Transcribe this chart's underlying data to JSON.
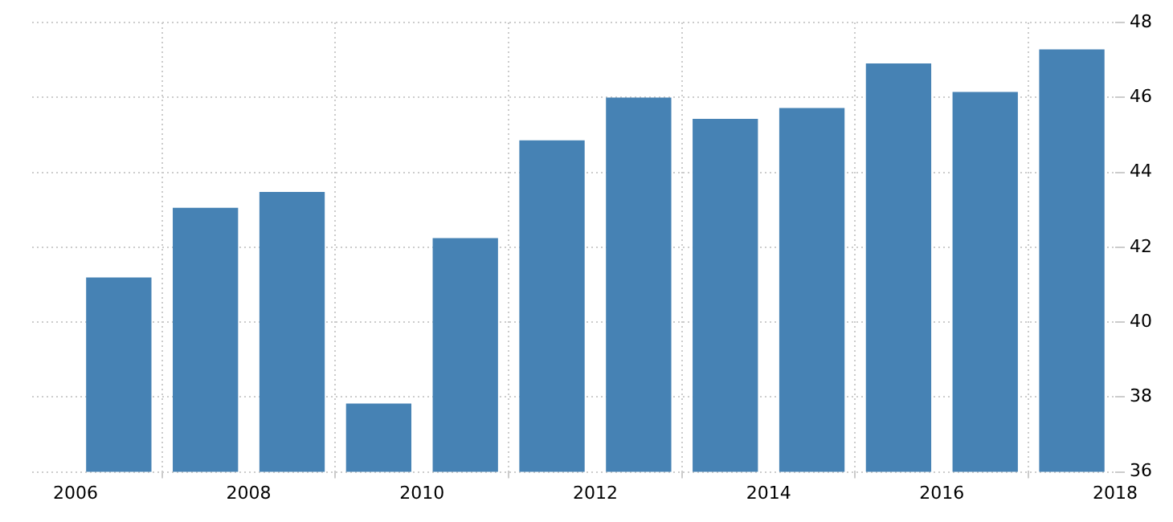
{
  "chart_data": {
    "type": "bar",
    "x": [
      2006.5,
      2007.5,
      2008.5,
      2009.5,
      2010.5,
      2011.5,
      2012.5,
      2013.5,
      2014.5,
      2015.5,
      2016.5,
      2017.5
    ],
    "values": [
      41.18,
      43.04,
      43.46,
      37.81,
      42.23,
      44.84,
      45.98,
      45.41,
      45.7,
      46.89,
      46.13,
      47.27
    ],
    "color": "#4682b4",
    "xlim": [
      2005.5,
      2018
    ],
    "xticks": [
      2006,
      2008,
      2010,
      2012,
      2014,
      2016,
      2018
    ],
    "ylim": [
      36,
      48
    ],
    "yticks": [
      36,
      38,
      40,
      42,
      44,
      46,
      48
    ],
    "grid": true,
    "legend": false
  }
}
